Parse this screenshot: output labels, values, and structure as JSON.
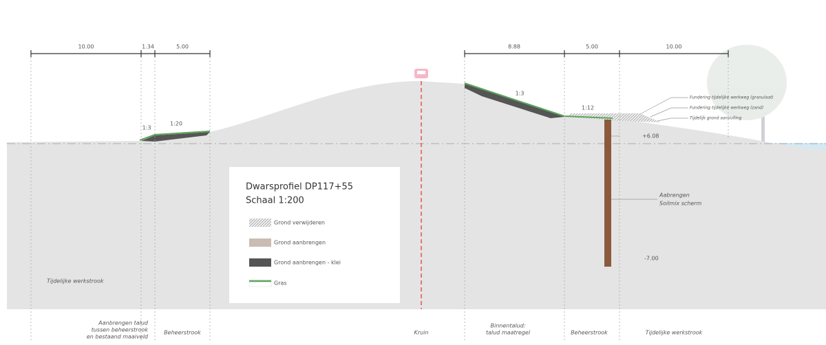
{
  "dimensions": [
    "10.00",
    "1.34",
    "5.00",
    "8.88",
    "5.00",
    "10.00"
  ],
  "slopes": [
    "1:3",
    "1:20",
    "1:3",
    "1:12"
  ],
  "annotations": {
    "layers": [
      "Fundering tijdelijke werkweg (granulaat)",
      "Fundering tijdelijke werkweg (zand)",
      "Tijdelijk grond aanvulling"
    ],
    "level_top": "+6.08",
    "soilmix": [
      "Aabrengen",
      "Soilmix scherm"
    ],
    "level_bottom": "-7.00"
  },
  "legend": {
    "title": "Dwarsprofiel DP117+55",
    "scale": "Schaal 1:200",
    "items": [
      "Grond verwijderen",
      "Grond aanbrengen",
      "Grond aanbrengen - klei",
      "Gras"
    ]
  },
  "zones": {
    "work_strip": "Tijdelijke werkstrook",
    "bottom": [
      {
        "lines": [
          "Aanbrengen talud",
          "tussen beheerstrook",
          "en bestaand maaiveld"
        ]
      },
      {
        "lines": [
          "Beheerstrook"
        ]
      },
      {
        "lines": [
          "Kruin"
        ]
      },
      {
        "lines": [
          "Binnentalud:",
          "talud maatregel"
        ]
      },
      {
        "lines": [
          "Beheerstrook"
        ]
      },
      {
        "lines": [
          "Tijdelijke werkstrook"
        ]
      }
    ]
  }
}
